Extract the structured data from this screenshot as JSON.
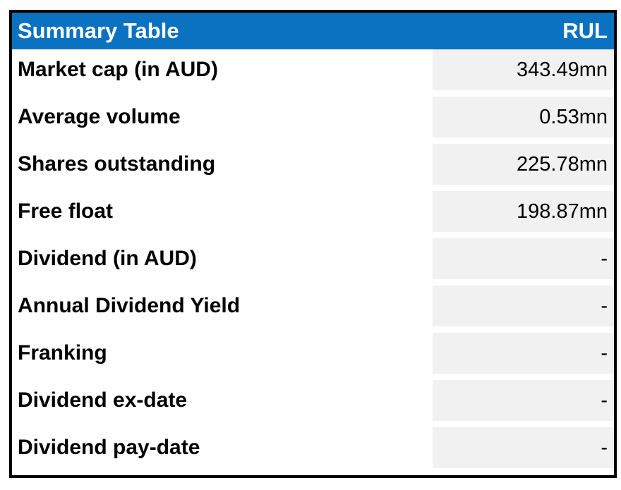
{
  "header": {
    "title": "Summary Table",
    "ticker": "RUL"
  },
  "rows": [
    {
      "label": "Market cap (in AUD)",
      "value": "343.49mn"
    },
    {
      "label": "Average volume",
      "value": "0.53mn"
    },
    {
      "label": "Shares outstanding",
      "value": "225.78mn"
    },
    {
      "label": "Free float",
      "value": "198.87mn"
    },
    {
      "label": "Dividend (in AUD)",
      "value": "-"
    },
    {
      "label": "Annual Dividend Yield",
      "value": "-"
    },
    {
      "label": "Franking",
      "value": "-"
    },
    {
      "label": "Dividend ex-date",
      "value": "-"
    },
    {
      "label": "Dividend pay-date",
      "value": "-"
    }
  ],
  "colors": {
    "header_bg": "#0b72c2",
    "header_text": "#ffffff",
    "cell_bg": "#f1f1f1",
    "label_text": "#000000",
    "border": "#000000"
  }
}
